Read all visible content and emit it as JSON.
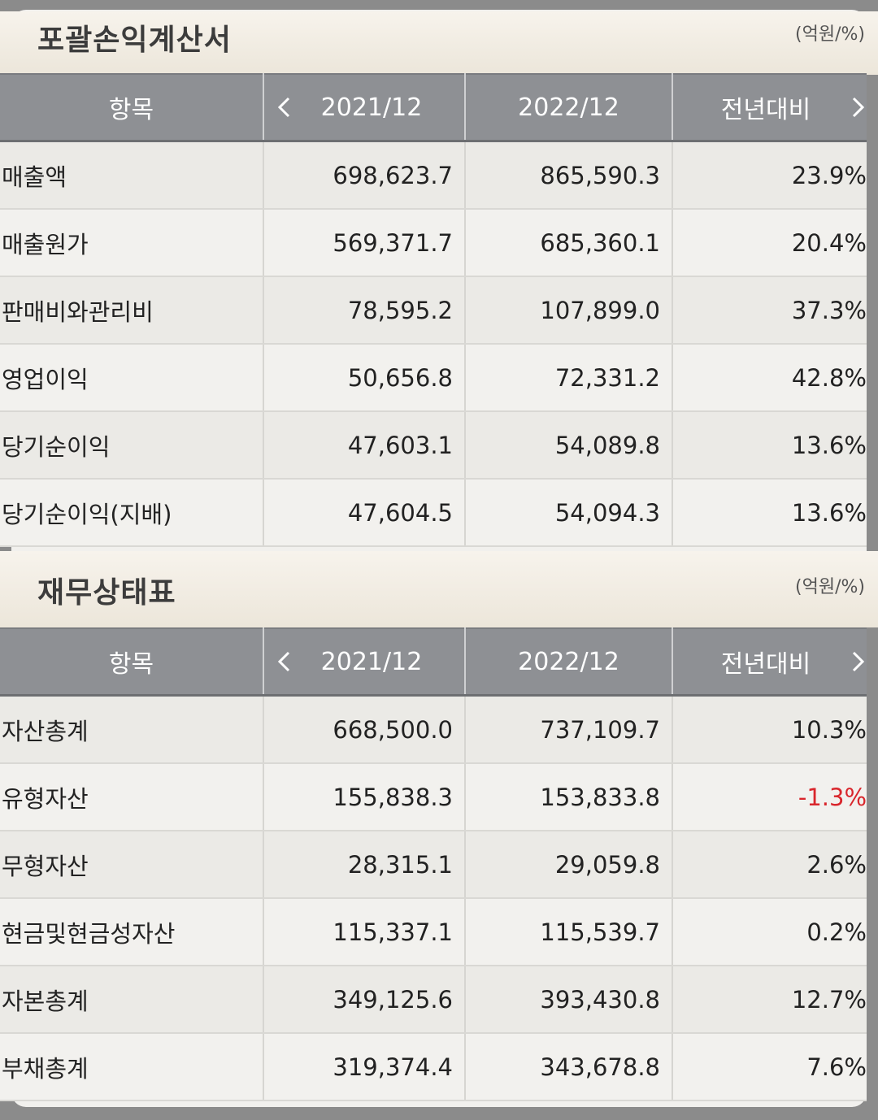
{
  "income_statement": {
    "title": "포괄손익계산서",
    "unit": "(억원/%)",
    "headers": [
      "항목",
      "2021/12",
      "2022/12",
      "전년대비"
    ],
    "rows": [
      {
        "label": "매출액",
        "y2021": "698,623.7",
        "y2022": "865,590.3",
        "yoy": "23.9%"
      },
      {
        "label": "매출원가",
        "y2021": "569,371.7",
        "y2022": "685,360.1",
        "yoy": "20.4%"
      },
      {
        "label": "판매비와관리비",
        "y2021": "78,595.2",
        "y2022": "107,899.0",
        "yoy": "37.3%"
      },
      {
        "label": "영업이익",
        "y2021": "50,656.8",
        "y2022": "72,331.2",
        "yoy": "42.8%"
      },
      {
        "label": "당기순이익",
        "y2021": "47,603.1",
        "y2022": "54,089.8",
        "yoy": "13.6%"
      },
      {
        "label": "당기순이익(지배)",
        "y2021": "47,604.5",
        "y2022": "54,094.3",
        "yoy": "13.6%"
      }
    ]
  },
  "balance_sheet": {
    "title": "재무상태표",
    "unit": "(억원/%)",
    "headers": [
      "항목",
      "2021/12",
      "2022/12",
      "전년대비"
    ],
    "rows": [
      {
        "label": "자산총계",
        "y2021": "668,500.0",
        "y2022": "737,109.7",
        "yoy": "10.3%"
      },
      {
        "label": "유형자산",
        "y2021": "155,838.3",
        "y2022": "153,833.8",
        "yoy": "-1.3%"
      },
      {
        "label": "무형자산",
        "y2021": "28,315.1",
        "y2022": "29,059.8",
        "yoy": "2.6%"
      },
      {
        "label": "현금및현금성자산",
        "y2021": "115,337.1",
        "y2022": "115,539.7",
        "yoy": "0.2%"
      },
      {
        "label": "자본총계",
        "y2021": "349,125.6",
        "y2022": "393,430.8",
        "yoy": "12.7%"
      },
      {
        "label": "부채총계",
        "y2021": "319,374.4",
        "y2022": "343,678.8",
        "yoy": "7.6%"
      }
    ]
  },
  "colors": {
    "header_bg": "#8e9094",
    "negative": "#d9262c"
  },
  "icons": {
    "prev": "chevron-left-icon",
    "next": "chevron-right-icon"
  }
}
